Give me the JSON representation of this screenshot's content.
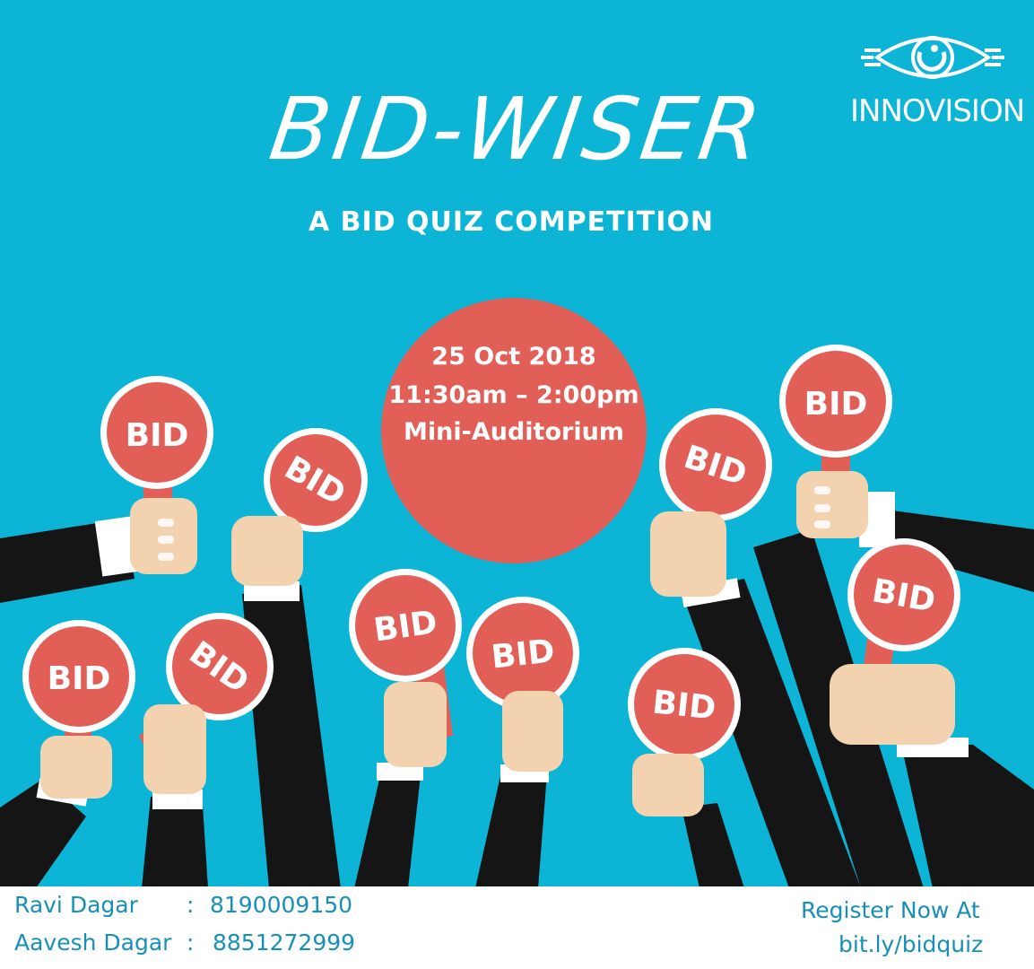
{
  "poster": {
    "title": "BID-WISER",
    "subtitle": "A BID QUIZ COMPETITION",
    "logo_text": "INNOVISION",
    "event": {
      "date": "25 Oct 2018",
      "time": "11:30am – 2:00pm",
      "venue": "Mini-Auditorium"
    },
    "paddle_label": "BID",
    "contacts": [
      {
        "name": "Ravi Dagar",
        "sep": ":",
        "phone": "8190009150"
      },
      {
        "name": "Aavesh Dagar",
        "sep": ":",
        "phone": "8851272999"
      }
    ],
    "register": {
      "line1": "Register Now At",
      "line2": "bit.ly/bidquiz"
    },
    "colors": {
      "background": "#0cb5d6",
      "paddle": "#e25f58",
      "sleeve": "#151515",
      "skin": "#f3d2b0",
      "text_footer": "#1790b8"
    }
  }
}
